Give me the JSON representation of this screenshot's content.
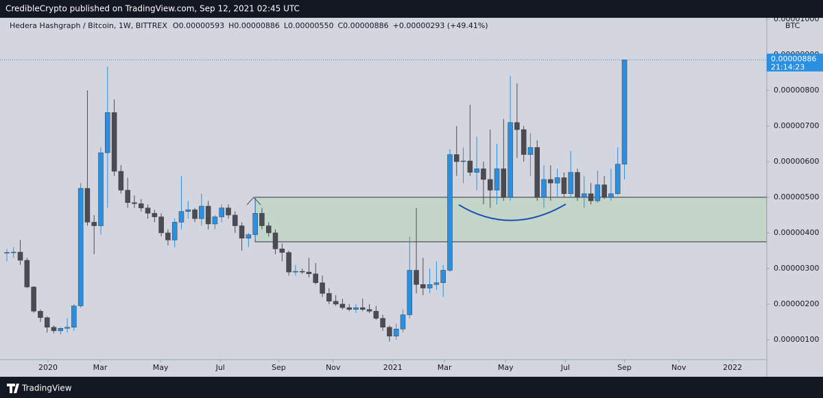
{
  "header": "CredibleCrypto published on TradingView.com, Sep 12, 2021 02:45 UTC",
  "footer": "TradingView",
  "chart_data": {
    "type": "candlestick",
    "title": "Hedera Hashgraph / Bitcoin, 1W, BITTREX",
    "legend_values": [
      "O0.00000593",
      "H0.00000886",
      "L0.00000550",
      "C0.00000886",
      "+0.00000293 (+49.41%)"
    ],
    "axis_unit": "BTC",
    "price_label": "0.00000886",
    "countdown": "21:14:23",
    "up_color": "#2a8fe0",
    "down_color": "#4a4c52",
    "open": [
      3.45e-06,
      3.45e-06,
      3.46e-06,
      3.23e-06,
      2.48e-06,
      1.8e-06,
      1.62e-06,
      1.35e-06,
      1.25e-06,
      1.32e-06,
      1.35e-06,
      1.95e-06,
      5.25e-06,
      4.3e-06,
      4.2e-06,
      6.25e-06,
      7.38e-06,
      5.73e-06,
      5.2e-06,
      4.85e-06,
      4.82e-06,
      4.7e-06,
      4.55e-06,
      4.45e-06,
      4e-06,
      3.8e-06,
      4.3e-06,
      4.6e-06,
      4.65e-06,
      4.4e-06,
      4.75e-06,
      4.25e-06,
      4.45e-06,
      4.7e-06,
      4.5e-06,
      4.2e-06,
      3.85e-06,
      3.95e-06,
      4.55e-06,
      4.2e-06,
      4e-06,
      3.55e-06,
      3.45e-06,
      2.9e-06,
      2.92e-06,
      2.9e-06,
      2.85e-06,
      2.6e-06,
      2.3e-06,
      2.08e-06,
      2e-06,
      1.9e-06,
      1.85e-06,
      1.9e-06,
      1.85e-06,
      1.8e-06,
      1.6e-06,
      1.35e-06,
      1.1e-06,
      1.3e-06,
      1.7e-06,
      2.95e-06,
      2.55e-06,
      2.45e-06,
      2.55e-06,
      2.6e-06,
      2.95e-06,
      6.2e-06,
      6e-06,
      6.02e-06,
      5.7e-06,
      5.8e-06,
      5.5e-06,
      5.2e-06,
      5.8e-06,
      5e-06,
      7.1e-06,
      6.9e-06,
      6.2e-06,
      6.4e-06,
      5e-06,
      5.5e-06,
      5.4e-06,
      5.55e-06,
      5.1e-06,
      5.7e-06,
      5e-06,
      5.1e-06,
      4.9e-06,
      5.35e-06,
      5e-06,
      5.1e-06,
      5.93e-06
    ],
    "high": [
      3.55e-06,
      3.6e-06,
      3.8e-06,
      3.3e-06,
      2.5e-06,
      1.85e-06,
      1.65e-06,
      1.4e-06,
      1.35e-06,
      1.6e-06,
      2e-06,
      5.4e-06,
      8e-06,
      4.5e-06,
      6.4e-06,
      8.67e-06,
      7.75e-06,
      5.9e-06,
      5.55e-06,
      5.05e-06,
      4.95e-06,
      4.8e-06,
      4.65e-06,
      4.55e-06,
      4.1e-06,
      4.4e-06,
      5.6e-06,
      4.9e-06,
      4.7e-06,
      5.1e-06,
      4.9e-06,
      4.5e-06,
      4.8e-06,
      4.8e-06,
      4.6e-06,
      4.3e-06,
      4e-06,
      5e-06,
      4.7e-06,
      4.3e-06,
      4.1e-06,
      3.7e-06,
      3.5e-06,
      3.1e-06,
      3e-06,
      3.3e-06,
      3.15e-06,
      2.8e-06,
      2.45e-06,
      2.25e-06,
      2.15e-06,
      2e-06,
      2e-06,
      2.15e-06,
      2e-06,
      1.95e-06,
      1.7e-06,
      1.4e-06,
      1.45e-06,
      1.85e-06,
      3.9e-06,
      4.7e-06,
      3.3e-06,
      3e-06,
      3.2e-06,
      3.1e-06,
      6.35e-06,
      7e-06,
      6.4e-06,
      7.6e-06,
      6.7e-06,
      6e-06,
      6.9e-06,
      6.5e-06,
      7.2e-06,
      8.4e-06,
      8.2e-06,
      7e-06,
      6.8e-06,
      6.6e-06,
      5.9e-06,
      5.9e-06,
      5.8e-06,
      5.7e-06,
      6.3e-06,
      5.8e-06,
      5.6e-06,
      5.4e-06,
      5.75e-06,
      5.6e-06,
      5.8e-06,
      6.4e-06,
      8.86e-06
    ],
    "low": [
      3.2e-06,
      3.3e-06,
      3.1e-06,
      2.45e-06,
      1.75e-06,
      1.5e-06,
      1.2e-06,
      1.18e-06,
      1.15e-06,
      1.2e-06,
      1.25e-06,
      1.9e-06,
      4.2e-06,
      3.4e-06,
      3.95e-06,
      4.7e-06,
      5.6e-06,
      5.1e-06,
      4.7e-06,
      4.7e-06,
      4.6e-06,
      4.4e-06,
      4.3e-06,
      3.9e-06,
      3.65e-06,
      3.6e-06,
      4.1e-06,
      4.4e-06,
      4.3e-06,
      4.2e-06,
      4.1e-06,
      4.1e-06,
      4.3e-06,
      4.4e-06,
      4e-06,
      3.5e-06,
      3.6e-06,
      3.8e-06,
      4.1e-06,
      3.9e-06,
      3.4e-06,
      3.2e-06,
      2.8e-06,
      2.8e-06,
      2.85e-06,
      2.75e-06,
      2.55e-06,
      2.2e-06,
      2e-06,
      1.95e-06,
      1.85e-06,
      1.8e-06,
      1.75e-06,
      1.8e-06,
      1.75e-06,
      1.55e-06,
      1.25e-06,
      9.5e-07,
      1e-06,
      1.2e-06,
      1.6e-06,
      2.3e-06,
      2.25e-06,
      2.3e-06,
      2.4e-06,
      2.2e-06,
      2.9e-06,
      5.6e-06,
      5.4e-06,
      5.6e-06,
      5.2e-06,
      4.8e-06,
      4.7e-06,
      4.8e-06,
      4.9e-06,
      4.9e-06,
      6.1e-06,
      6e-06,
      5.6e-06,
      4.9e-06,
      4.7e-06,
      4.9e-06,
      5e-06,
      5e-06,
      5e-06,
      4.9e-06,
      4.7e-06,
      4.8e-06,
      4.85e-06,
      4.95e-06,
      4.9e-06,
      5.05e-06,
      5.5e-06
    ],
    "close": [
      3.45e-06,
      3.46e-06,
      3.23e-06,
      2.48e-06,
      1.8e-06,
      1.62e-06,
      1.35e-06,
      1.25e-06,
      1.32e-06,
      1.35e-06,
      1.95e-06,
      5.25e-06,
      4.3e-06,
      4.2e-06,
      6.25e-06,
      7.38e-06,
      5.73e-06,
      5.2e-06,
      4.85e-06,
      4.82e-06,
      4.7e-06,
      4.55e-06,
      4.45e-06,
      4e-06,
      3.8e-06,
      4.3e-06,
      4.6e-06,
      4.65e-06,
      4.4e-06,
      4.75e-06,
      4.25e-06,
      4.45e-06,
      4.7e-06,
      4.5e-06,
      4.2e-06,
      3.85e-06,
      3.95e-06,
      4.55e-06,
      4.2e-06,
      4e-06,
      3.55e-06,
      3.45e-06,
      2.9e-06,
      2.92e-06,
      2.9e-06,
      2.85e-06,
      2.6e-06,
      2.3e-06,
      2.08e-06,
      2e-06,
      1.9e-06,
      1.85e-06,
      1.9e-06,
      1.85e-06,
      1.8e-06,
      1.6e-06,
      1.35e-06,
      1.1e-06,
      1.3e-06,
      1.7e-06,
      2.95e-06,
      2.55e-06,
      2.45e-06,
      2.55e-06,
      2.6e-06,
      2.95e-06,
      6.2e-06,
      6e-06,
      6.02e-06,
      5.7e-06,
      5.8e-06,
      5.5e-06,
      5.2e-06,
      5.8e-06,
      5e-06,
      7.1e-06,
      6.9e-06,
      6.2e-06,
      6.4e-06,
      5e-06,
      5.5e-06,
      5.4e-06,
      5.55e-06,
      5.1e-06,
      5.7e-06,
      5e-06,
      5.1e-06,
      4.9e-06,
      5.35e-06,
      5e-06,
      5.1e-06,
      5.93e-06,
      8.86e-06
    ],
    "zone": {
      "top": 5e-06,
      "bottom": 3.75e-06,
      "start": 37,
      "color": "#c3d6c9"
    },
    "xlim": [
      -1.02,
      113.2
    ],
    "xticks": [
      {
        "value": 6.13,
        "label": "2020"
      },
      {
        "value": 13.9,
        "label": "Mar"
      },
      {
        "value": 22.9,
        "label": "May"
      },
      {
        "value": 31.8,
        "label": "Jul"
      },
      {
        "value": 40.5,
        "label": "Sep"
      },
      {
        "value": 48.6,
        "label": "Nov"
      },
      {
        "value": 57.5,
        "label": "2021"
      },
      {
        "value": 65.2,
        "label": "Mar"
      },
      {
        "value": 74.3,
        "label": "May"
      },
      {
        "value": 83.2,
        "label": "Jul"
      },
      {
        "value": 92.0,
        "label": "Sep"
      },
      {
        "value": 100.1,
        "label": "Nov"
      },
      {
        "value": 108.1,
        "label": "2022"
      }
    ],
    "ylim": [
      4.4e-07,
      1.004e-05
    ],
    "yticks": [
      {
        "value": 1e-06,
        "label": "0.00000100"
      },
      {
        "value": 2e-06,
        "label": "0.00000200"
      },
      {
        "value": 3e-06,
        "label": "0.00000300"
      },
      {
        "value": 4e-06,
        "label": "0.00000400"
      },
      {
        "value": 5e-06,
        "label": "0.00000500"
      },
      {
        "value": 6e-06,
        "label": "0.00000600"
      },
      {
        "value": 7e-06,
        "label": "0.00000700"
      },
      {
        "value": 8e-06,
        "label": "0.00000800"
      },
      {
        "value": 9e-06,
        "label": "0.00000900"
      },
      {
        "value": 1e-05,
        "label": "0.00001000"
      }
    ]
  }
}
